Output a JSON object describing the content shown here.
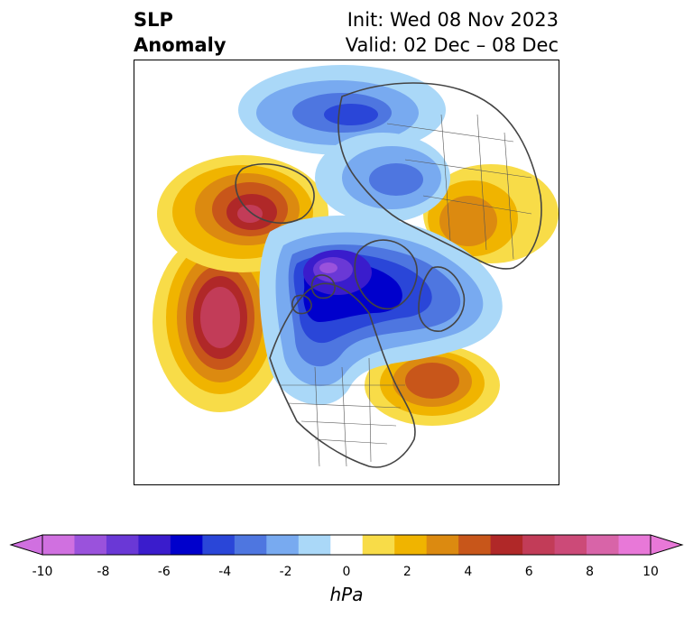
{
  "title": {
    "left_line1": "SLP",
    "left_line2": "Anomaly",
    "right_line1": "Init: Wed 08 Nov 2023",
    "right_line2": "Valid: 02 Dec – 08 Dec"
  },
  "colorbar": {
    "unit": "hPa",
    "ticks": [
      "-10",
      "-8",
      "-6",
      "-4",
      "-2",
      "0",
      "2",
      "4",
      "6",
      "8",
      "10"
    ],
    "colors": [
      "#d070e0",
      "#9a52dc",
      "#6a38d6",
      "#3a1ccc",
      "#0000cc",
      "#2a46d8",
      "#4e76e0",
      "#78aaf0",
      "#aad8f8",
      "#ffffff",
      "#f8dc48",
      "#f0b400",
      "#dc8a10",
      "#c8561a",
      "#b02828",
      "#c23c58",
      "#cc4a78",
      "#d864a8",
      "#e878d8"
    ],
    "extend": "both"
  },
  "map": {
    "projection": "north-polar-stereographic",
    "anomaly_centers": [
      {
        "region": "North Pacific",
        "sign": "positive",
        "peak_hpa": 8
      },
      {
        "region": "Alaska / Bering",
        "sign": "positive",
        "peak_hpa": 6
      },
      {
        "region": "Arctic Ocean near Canadian archipelago",
        "sign": "negative",
        "peak_hpa": -8
      },
      {
        "region": "Northern Siberia",
        "sign": "negative",
        "peak_hpa": -4
      },
      {
        "region": "Eurasia / Scandinavia",
        "sign": "negative",
        "peak_hpa": -3
      },
      {
        "region": "North Atlantic",
        "sign": "positive",
        "peak_hpa": 5
      },
      {
        "region": "East Asia",
        "sign": "positive",
        "peak_hpa": 4
      }
    ]
  }
}
